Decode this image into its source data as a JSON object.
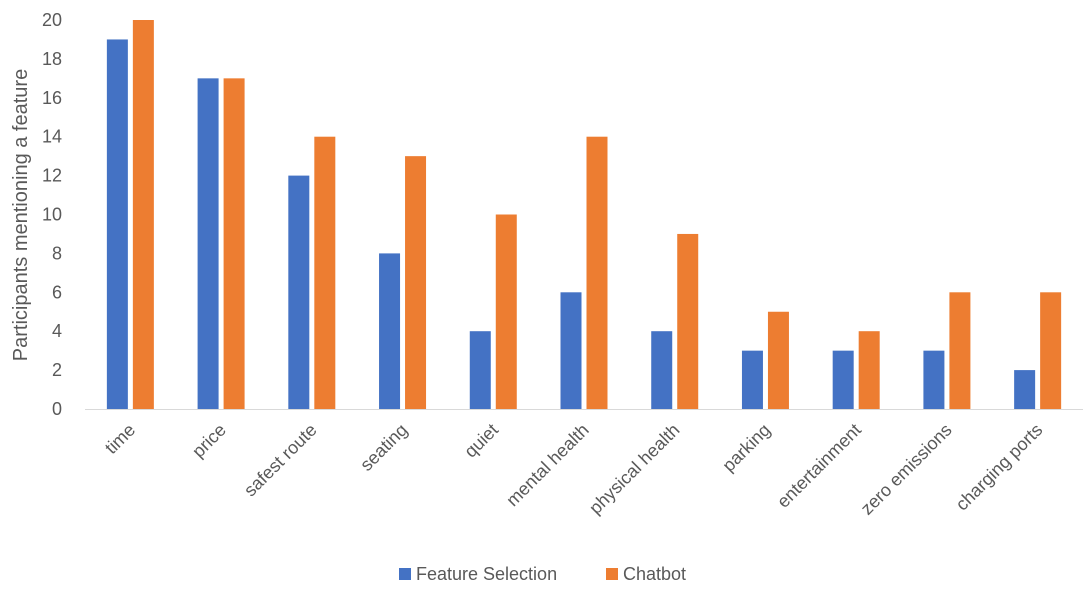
{
  "chart_data": {
    "type": "bar",
    "categories": [
      "time",
      "price",
      "safest route",
      "seating",
      "quiet",
      "mental health",
      "physical health",
      "parking",
      "entertainment",
      "zero emissions",
      "charging ports"
    ],
    "series": [
      {
        "name": "Feature Selection",
        "values": [
          19,
          17,
          12,
          8,
          4,
          6,
          4,
          3,
          3,
          3,
          2
        ],
        "color": "#4472c4"
      },
      {
        "name": "Chatbot",
        "values": [
          20,
          17,
          14,
          13,
          10,
          14,
          9,
          5,
          4,
          6,
          6
        ],
        "color": "#ed7d31"
      }
    ],
    "title": "",
    "xlabel": "",
    "ylabel": "Participants mentioning a feature",
    "ylim": [
      0,
      20
    ],
    "yticks": [
      0,
      2,
      4,
      6,
      8,
      10,
      12,
      14,
      16,
      18,
      20
    ],
    "grid": false,
    "legend_position": "bottom"
  }
}
